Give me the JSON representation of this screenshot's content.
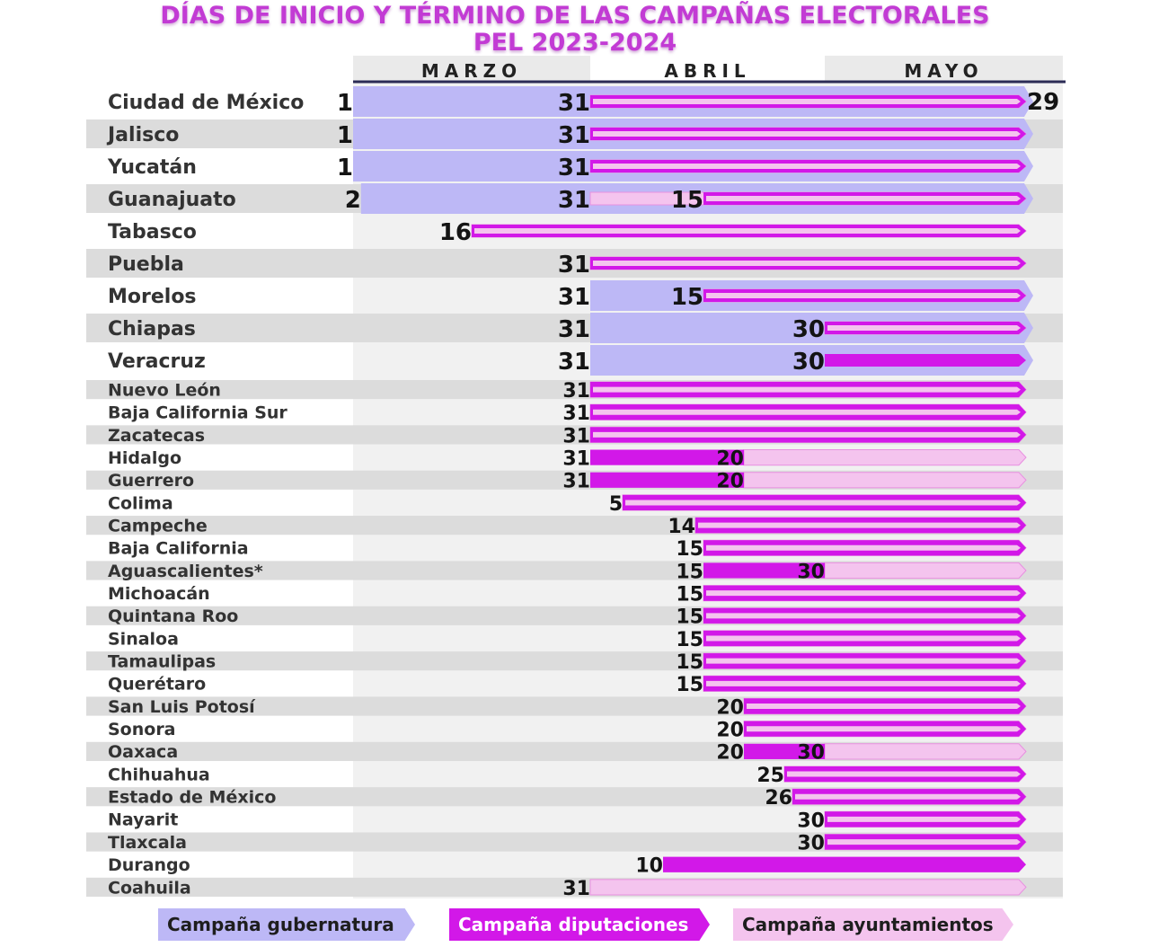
{
  "chart_data": {
    "type": "bar",
    "title": "DÍAS DE INICIO Y TÉRMINO DE LAS CAMPAÑAS ELECTORALES",
    "subtitle": "PEL 2023-2024",
    "months": [
      "MARZO",
      "ABRIL",
      "MAYO"
    ],
    "end_label": "29",
    "legend": [
      {
        "key": "gub",
        "label": "Campaña gubernatura",
        "color": "#bdb8f6"
      },
      {
        "key": "dip",
        "label": "Campaña diputaciones",
        "color": "#d218e8"
      },
      {
        "key": "ayu",
        "label": "Campaña ayuntamientos",
        "color": "#f4c4ee"
      }
    ],
    "states": [
      {
        "name": "Ciudad de México",
        "gub": "03-01",
        "dip": "03-31",
        "ayu": "03-31",
        "labels": [
          "1",
          "31"
        ]
      },
      {
        "name": "Jalisco",
        "gub": "03-01",
        "dip": "03-31",
        "ayu": "03-31",
        "labels": [
          "1",
          "31"
        ]
      },
      {
        "name": "Yucatán",
        "gub": "03-01",
        "dip": "03-31",
        "ayu": "03-31",
        "labels": [
          "1",
          "31"
        ]
      },
      {
        "name": "Guanajuato",
        "gub": "03-02",
        "dip": "04-15",
        "ayu": "03-31",
        "labels": [
          "2",
          "31",
          "15"
        ]
      },
      {
        "name": "Tabasco",
        "gub": null,
        "dip": "03-16",
        "ayu": "03-16",
        "labels": [
          "16"
        ]
      },
      {
        "name": "Puebla",
        "gub": null,
        "dip": "03-31",
        "ayu": "03-31",
        "labels": [
          "31"
        ]
      },
      {
        "name": "Morelos",
        "gub": "03-31",
        "dip": "04-15",
        "ayu": "04-15",
        "labels": [
          "31",
          "15"
        ]
      },
      {
        "name": "Chiapas",
        "gub": "03-31",
        "dip": "04-30",
        "ayu": "04-30",
        "labels": [
          "31",
          "30"
        ]
      },
      {
        "name": "Veracruz",
        "gub": "03-31",
        "dip": "04-30",
        "ayu": null,
        "labels": [
          "31",
          "30"
        ]
      },
      {
        "name": "Nuevo León",
        "gub": null,
        "dip": "03-31",
        "ayu": "03-31",
        "labels": [
          "31"
        ]
      },
      {
        "name": "Baja California Sur",
        "gub": null,
        "dip": "03-31",
        "ayu": "03-31",
        "labels": [
          "31"
        ]
      },
      {
        "name": "Zacatecas",
        "gub": null,
        "dip": "03-31",
        "ayu": "03-31",
        "labels": [
          "31"
        ]
      },
      {
        "name": "Hidalgo",
        "gub": null,
        "dip": "03-31",
        "ayu": "04-20",
        "labels": [
          "31",
          "20"
        ]
      },
      {
        "name": "Guerrero",
        "gub": null,
        "dip": "03-31",
        "ayu": "04-20",
        "labels": [
          "31",
          "20"
        ]
      },
      {
        "name": "Colima",
        "gub": null,
        "dip": "04-05",
        "ayu": "04-05",
        "labels": [
          "5"
        ]
      },
      {
        "name": "Campeche",
        "gub": null,
        "dip": "04-14",
        "ayu": "04-14",
        "labels": [
          "14"
        ]
      },
      {
        "name": "Baja California",
        "gub": null,
        "dip": "04-15",
        "ayu": "04-15",
        "labels": [
          "15"
        ]
      },
      {
        "name": "Aguascalientes*",
        "gub": null,
        "dip": "04-15",
        "ayu": "04-30",
        "labels": [
          "15",
          "30"
        ]
      },
      {
        "name": "Michoacán",
        "gub": null,
        "dip": "04-15",
        "ayu": "04-15",
        "labels": [
          "15"
        ]
      },
      {
        "name": "Quintana Roo",
        "gub": null,
        "dip": "04-15",
        "ayu": "04-15",
        "labels": [
          "15"
        ]
      },
      {
        "name": "Sinaloa",
        "gub": null,
        "dip": "04-15",
        "ayu": "04-15",
        "labels": [
          "15"
        ]
      },
      {
        "name": "Tamaulipas",
        "gub": null,
        "dip": "04-15",
        "ayu": "04-15",
        "labels": [
          "15"
        ]
      },
      {
        "name": "Querétaro",
        "gub": null,
        "dip": "04-15",
        "ayu": "04-15",
        "labels": [
          "15"
        ]
      },
      {
        "name": "San Luis Potosí",
        "gub": null,
        "dip": "04-20",
        "ayu": "04-20",
        "labels": [
          "20"
        ]
      },
      {
        "name": "Sonora",
        "gub": null,
        "dip": "04-20",
        "ayu": "04-20",
        "labels": [
          "20"
        ]
      },
      {
        "name": "Oaxaca",
        "gub": null,
        "dip": "04-20",
        "ayu": "04-30",
        "labels": [
          "20",
          "30"
        ]
      },
      {
        "name": "Chihuahua",
        "gub": null,
        "dip": "04-25",
        "ayu": "04-25",
        "labels": [
          "25"
        ]
      },
      {
        "name": "Estado de México",
        "gub": null,
        "dip": "04-26",
        "ayu": "04-26",
        "labels": [
          "26"
        ]
      },
      {
        "name": "Nayarit",
        "gub": null,
        "dip": "04-30",
        "ayu": "04-30",
        "labels": [
          "30"
        ]
      },
      {
        "name": "Tlaxcala",
        "gub": null,
        "dip": "04-30",
        "ayu": "04-30",
        "labels": [
          "30"
        ]
      },
      {
        "name": "Durango",
        "gub": null,
        "dip": "04-10",
        "ayu": null,
        "labels": [
          "10"
        ]
      },
      {
        "name": "Coahuila",
        "gub": null,
        "dip": null,
        "ayu": "03-31",
        "labels": [
          "31"
        ]
      }
    ]
  }
}
